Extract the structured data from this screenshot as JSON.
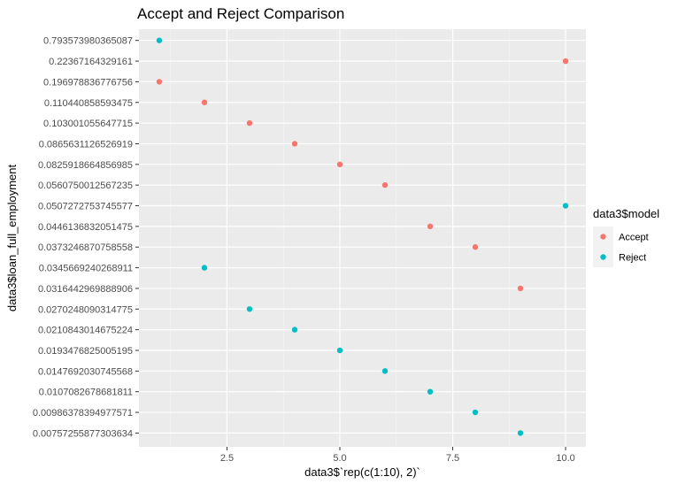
{
  "chart_data": {
    "type": "scatter",
    "title": "Accept and Reject Comparison",
    "xlabel": "data3$`rep(c(1:10), 2)`",
    "ylabel": "data3$loan_full_employment",
    "xlim": [
      0.55,
      10.45
    ],
    "x_ticks": [
      {
        "value": 2.5,
        "label": "2.5"
      },
      {
        "value": 5.0,
        "label": "5.0"
      },
      {
        "value": 7.5,
        "label": "7.5"
      },
      {
        "value": 10.0,
        "label": "10.0"
      }
    ],
    "y_categories": [
      "0.00757255877303634",
      "0.00986378394977571",
      "0.0107082678681811",
      "0.0147692030745568",
      "0.0193476825005195",
      "0.0210843014675224",
      "0.0270248090314775",
      "0.0316442969888906",
      "0.0345669240268911",
      "0.0373246870758558",
      "0.0446136832051475",
      "0.0507272753745577",
      "0.0560750012567235",
      "0.0825918664856985",
      "0.0865631126526919",
      "0.103001055647715",
      "0.110440858593475",
      "0.196978836776756",
      "0.22367164329161",
      "0.793573980365087"
    ],
    "grid": true,
    "legend": {
      "title": "data3$model",
      "placement": "right"
    },
    "series": [
      {
        "name": "Accept",
        "color": "#F8766D",
        "points": [
          {
            "x": 1,
            "y": "0.196978836776756"
          },
          {
            "x": 2,
            "y": "0.110440858593475"
          },
          {
            "x": 3,
            "y": "0.103001055647715"
          },
          {
            "x": 4,
            "y": "0.0865631126526919"
          },
          {
            "x": 5,
            "y": "0.0825918664856985"
          },
          {
            "x": 6,
            "y": "0.0560750012567235"
          },
          {
            "x": 7,
            "y": "0.0446136832051475"
          },
          {
            "x": 8,
            "y": "0.0373246870758558"
          },
          {
            "x": 9,
            "y": "0.0316442969888906"
          },
          {
            "x": 10,
            "y": "0.22367164329161"
          }
        ]
      },
      {
        "name": "Reject",
        "color": "#00BFC4",
        "points": [
          {
            "x": 1,
            "y": "0.793573980365087"
          },
          {
            "x": 2,
            "y": "0.0345669240268911"
          },
          {
            "x": 3,
            "y": "0.0270248090314775"
          },
          {
            "x": 4,
            "y": "0.0210843014675224"
          },
          {
            "x": 5,
            "y": "0.0193476825005195"
          },
          {
            "x": 6,
            "y": "0.0147692030745568"
          },
          {
            "x": 7,
            "y": "0.0107082678681811"
          },
          {
            "x": 8,
            "y": "0.00986378394977571"
          },
          {
            "x": 9,
            "y": "0.00757255877303634"
          },
          {
            "x": 10,
            "y": "0.0507272753745577"
          }
        ]
      }
    ],
    "colors": {
      "panel_background": "#EBEBEB",
      "grid_major": "#FFFFFF",
      "legend_key_background": "#F2F2F2"
    }
  }
}
